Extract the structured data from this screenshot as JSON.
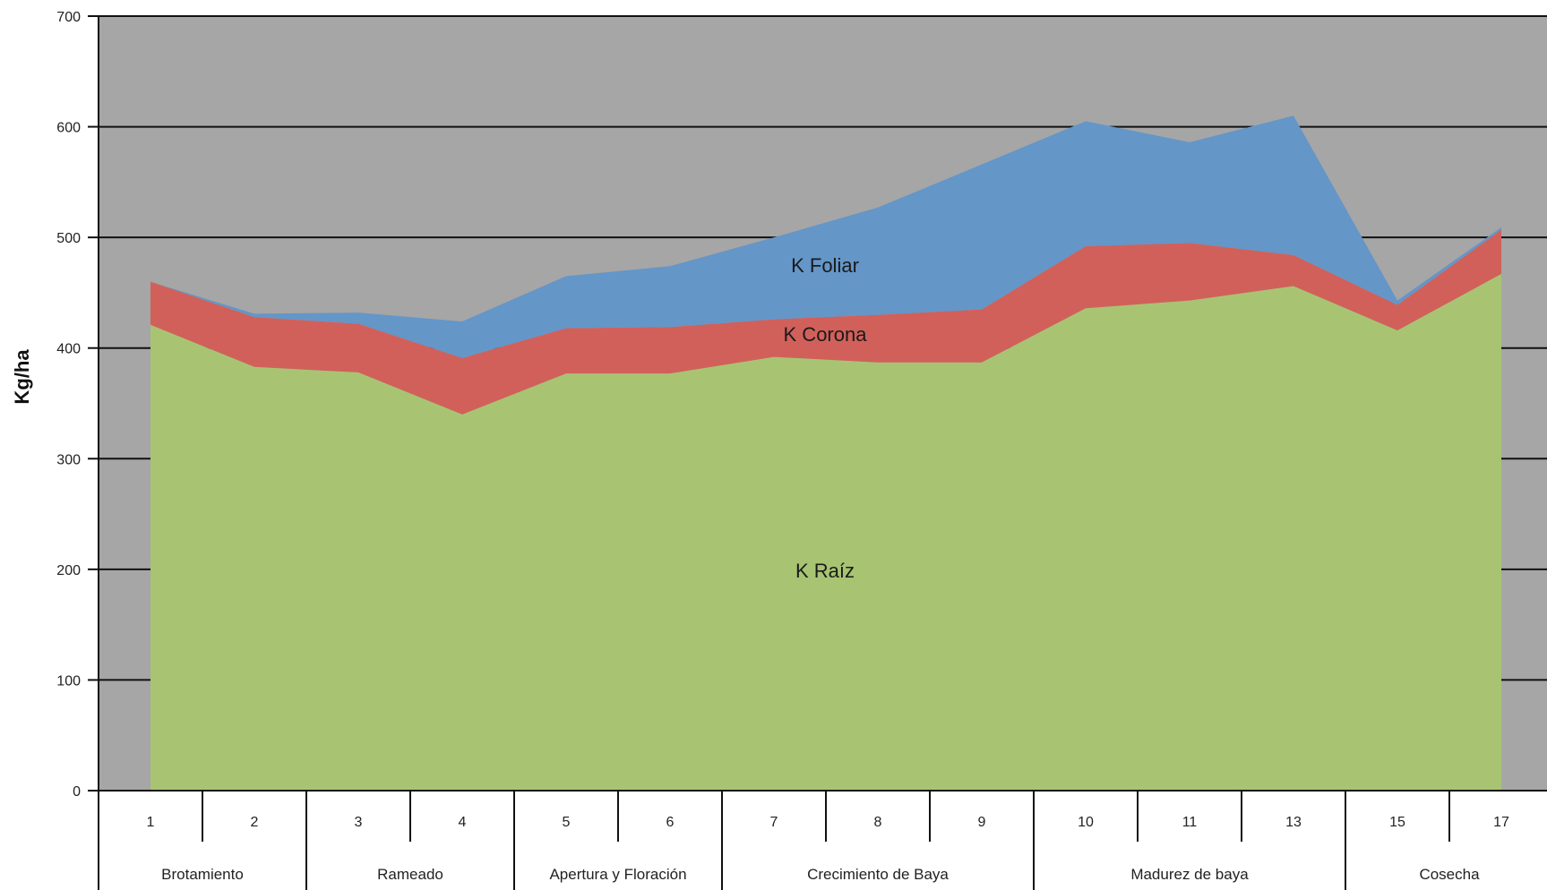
{
  "chart_data": {
    "type": "area",
    "stacked": true,
    "ylabel": "Kg/ha",
    "ylim": [
      0,
      700
    ],
    "yticks": [
      "0",
      "100",
      "200",
      "300",
      "400",
      "500",
      "600",
      "700"
    ],
    "grid": true,
    "categories": [
      "1",
      "2",
      "3",
      "4",
      "5",
      "6",
      "7",
      "8",
      "9",
      "10",
      "11",
      "13",
      "15",
      "17"
    ],
    "groups": [
      {
        "label": "Brotamiento",
        "span": 2
      },
      {
        "label": "Rameado",
        "span": 2
      },
      {
        "label": "Apertura y Floración",
        "span": 2
      },
      {
        "label": "Crecimiento de Baya",
        "span": 3
      },
      {
        "label": "Madurez de baya",
        "span": 3
      },
      {
        "label": "Cosecha",
        "span": 2
      }
    ],
    "series": [
      {
        "name": "K Raíz",
        "color": "#a8c472",
        "values": [
          421,
          383,
          378,
          340,
          377,
          377,
          392,
          387,
          387,
          436,
          443,
          456,
          416,
          467
        ]
      },
      {
        "name": "K Corona",
        "color": "#d1605b",
        "values": [
          39,
          45,
          44,
          51,
          41,
          42,
          34,
          43,
          48,
          56,
          52,
          28,
          23,
          40
        ]
      },
      {
        "name": "K Foliar",
        "color": "#6496c8",
        "values": [
          0,
          3,
          10,
          33,
          47,
          55,
          74,
          97,
          131,
          113,
          91,
          126,
          4,
          2
        ]
      }
    ],
    "plot_background": "#a6a6a6"
  }
}
